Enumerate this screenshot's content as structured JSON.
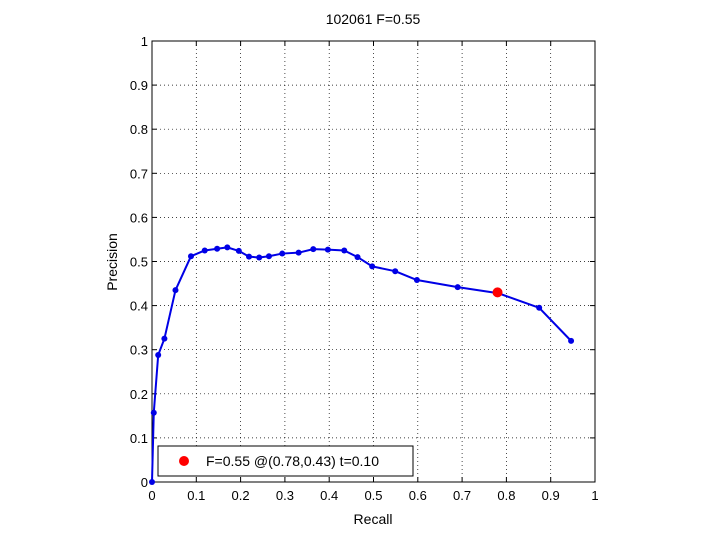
{
  "chart_data": {
    "type": "line",
    "title": "102061 F=0.55",
    "xlabel": "Recall",
    "ylabel": "Precision",
    "xlim": [
      0,
      1
    ],
    "ylim": [
      0,
      1
    ],
    "xticks": [
      "0",
      "0.1",
      "0.2",
      "0.3",
      "0.4",
      "0.5",
      "0.6",
      "0.7",
      "0.8",
      "0.9",
      "1"
    ],
    "yticks": [
      "0",
      "0.1",
      "0.2",
      "0.3",
      "0.4",
      "0.5",
      "0.6",
      "0.7",
      "0.8",
      "0.9",
      "1"
    ],
    "grid": true,
    "series": [
      {
        "color": "#0000e6",
        "x": [
          0.0,
          0.004,
          0.014,
          0.028,
          0.053,
          0.088,
          0.119,
          0.147,
          0.17,
          0.196,
          0.219,
          0.242,
          0.264,
          0.294,
          0.331,
          0.364,
          0.397,
          0.434,
          0.464,
          0.497,
          0.549,
          0.598,
          0.69,
          0.782,
          0.874,
          0.946
        ],
        "y": [
          0.0,
          0.157,
          0.288,
          0.325,
          0.435,
          0.512,
          0.525,
          0.529,
          0.532,
          0.524,
          0.511,
          0.509,
          0.512,
          0.518,
          0.52,
          0.528,
          0.527,
          0.525,
          0.51,
          0.489,
          0.478,
          0.458,
          0.442,
          0.428,
          0.395,
          0.32
        ]
      }
    ],
    "highlight": {
      "x": 0.78,
      "y": 0.43,
      "color": "#ff0000"
    },
    "legend": {
      "position": "bottom-left",
      "entries": [
        {
          "label": "F=0.55 @(0.78,0.43) t=0.10",
          "color": "#ff0000"
        }
      ]
    }
  }
}
